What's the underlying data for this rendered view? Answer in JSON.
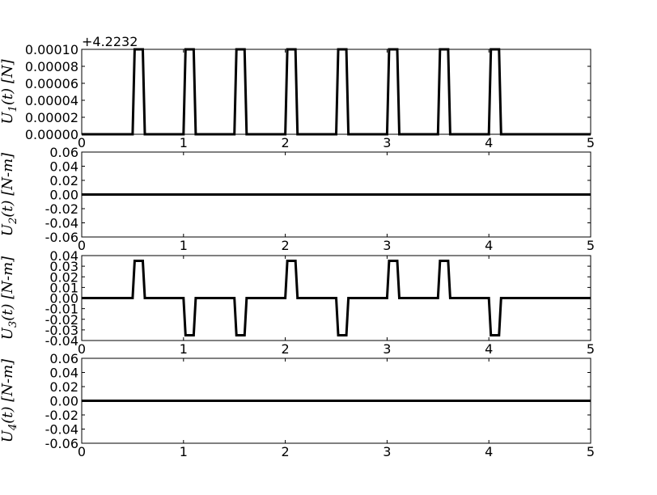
{
  "chart_data": [
    {
      "type": "line",
      "ylabel": "U_1(t) [N]",
      "offset_text": "+4.2232",
      "xlim": [
        0,
        5
      ],
      "ylim": [
        0,
        0.0001
      ],
      "xticks": [
        "0",
        "1",
        "2",
        "3",
        "4",
        "5"
      ],
      "yticks": [
        "0.00000",
        "0.00002",
        "0.00004",
        "0.00006",
        "0.00008",
        "0.00010"
      ],
      "grid": false,
      "line_color": "#000000",
      "series": [
        {
          "x": [
            0,
            0.5,
            0.52,
            0.6,
            0.62,
            1.0,
            1.02,
            1.1,
            1.12,
            1.5,
            1.52,
            1.6,
            1.62,
            2.0,
            2.02,
            2.1,
            2.12,
            2.5,
            2.52,
            2.6,
            2.62,
            3.0,
            3.02,
            3.1,
            3.12,
            3.5,
            3.52,
            3.6,
            3.62,
            4.0,
            4.02,
            4.1,
            4.12,
            5.0
          ],
          "y": [
            0,
            0,
            0.0001,
            0.0001,
            0,
            0,
            0.0001,
            0.0001,
            0,
            0,
            0.0001,
            0.0001,
            0,
            0,
            0.0001,
            0.0001,
            0,
            0,
            0.0001,
            0.0001,
            0,
            0,
            0.0001,
            0.0001,
            0,
            0,
            0.0001,
            0.0001,
            0,
            0,
            0.0001,
            0.0001,
            0,
            0
          ]
        }
      ]
    },
    {
      "type": "line",
      "ylabel": "U_2(t) [N-m]",
      "xlim": [
        0,
        5
      ],
      "ylim": [
        -0.06,
        0.06
      ],
      "xticks": [
        "0",
        "1",
        "2",
        "3",
        "4",
        "5"
      ],
      "yticks": [
        "-0.06",
        "-0.04",
        "-0.02",
        "0.00",
        "0.02",
        "0.04",
        "0.06"
      ],
      "grid": false,
      "line_color": "#000000",
      "series": [
        {
          "x": [
            0,
            5
          ],
          "y": [
            0,
            0
          ]
        }
      ]
    },
    {
      "type": "line",
      "ylabel": "U_3(t) [N-m]",
      "xlim": [
        0,
        5
      ],
      "ylim": [
        -0.04,
        0.04
      ],
      "xticks": [
        "0",
        "1",
        "2",
        "3",
        "4",
        "5"
      ],
      "yticks": [
        "-0.04",
        "-0.03",
        "-0.02",
        "-0.01",
        "0.00",
        "0.01",
        "0.02",
        "0.03",
        "0.04"
      ],
      "grid": false,
      "line_color": "#000000",
      "series": [
        {
          "x": [
            0,
            0.5,
            0.52,
            0.6,
            0.62,
            1.0,
            1.02,
            1.1,
            1.12,
            1.5,
            1.52,
            1.6,
            1.62,
            2.0,
            2.02,
            2.1,
            2.12,
            2.5,
            2.52,
            2.6,
            2.62,
            3.0,
            3.02,
            3.1,
            3.12,
            3.5,
            3.52,
            3.6,
            3.62,
            4.0,
            4.02,
            4.1,
            4.12,
            5.0
          ],
          "y": [
            0,
            0,
            0.035,
            0.035,
            0,
            0,
            -0.035,
            -0.035,
            0,
            0,
            -0.035,
            -0.035,
            0,
            0,
            0.035,
            0.035,
            0,
            0,
            -0.035,
            -0.035,
            0,
            0,
            0.035,
            0.035,
            0,
            0,
            0.035,
            0.035,
            0,
            0,
            -0.035,
            -0.035,
            0,
            0
          ]
        }
      ]
    },
    {
      "type": "line",
      "ylabel": "U_4(t) [N-m]",
      "xlim": [
        0,
        5
      ],
      "ylim": [
        -0.06,
        0.06
      ],
      "xticks": [
        "0",
        "1",
        "2",
        "3",
        "4",
        "5"
      ],
      "yticks": [
        "-0.06",
        "-0.04",
        "-0.02",
        "0.00",
        "0.02",
        "0.04",
        "0.06"
      ],
      "grid": false,
      "line_color": "#000000",
      "series": [
        {
          "x": [
            0,
            5
          ],
          "y": [
            0,
            0
          ]
        }
      ]
    }
  ]
}
